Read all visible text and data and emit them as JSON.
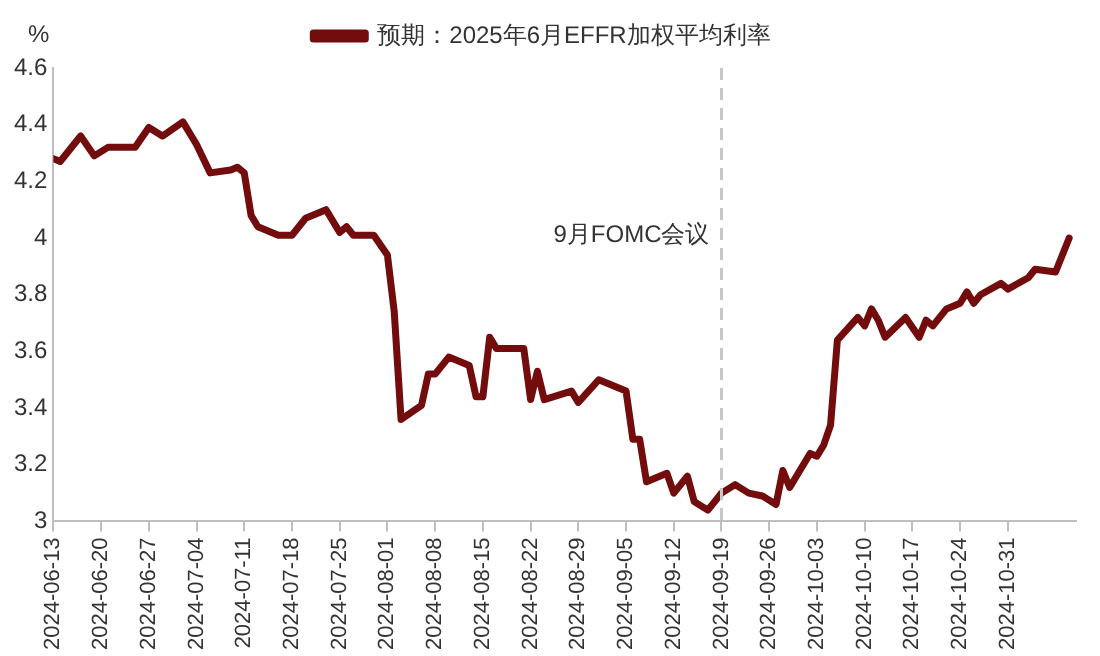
{
  "chart_data": {
    "type": "line",
    "ylabel": "%",
    "legend": "top",
    "grid": false,
    "marker": "none",
    "line_style": "solid",
    "x": [
      "2024-06-13",
      "2024-06-14",
      "2024-06-17",
      "2024-06-19",
      "2024-06-21",
      "2024-06-25",
      "2024-06-27",
      "2024-06-29",
      "2024-07-02",
      "2024-07-04",
      "2024-07-06",
      "2024-07-09",
      "2024-07-10",
      "2024-07-11",
      "2024-07-12",
      "2024-07-13",
      "2024-07-16",
      "2024-07-18",
      "2024-07-20",
      "2024-07-23",
      "2024-07-25",
      "2024-07-26",
      "2024-07-27",
      "2024-07-30",
      "2024-08-01",
      "2024-08-02",
      "2024-08-03",
      "2024-08-06",
      "2024-08-07",
      "2024-08-08",
      "2024-08-10",
      "2024-08-13",
      "2024-08-14",
      "2024-08-15",
      "2024-08-16",
      "2024-08-17",
      "2024-08-21",
      "2024-08-22",
      "2024-08-23",
      "2024-08-24",
      "2024-08-28",
      "2024-08-29",
      "2024-09-01",
      "2024-09-05",
      "2024-09-06",
      "2024-09-07",
      "2024-09-08",
      "2024-09-11",
      "2024-09-12",
      "2024-09-14",
      "2024-09-15",
      "2024-09-17",
      "2024-09-19",
      "2024-09-21",
      "2024-09-23",
      "2024-09-25",
      "2024-09-27",
      "2024-09-28",
      "2024-09-29",
      "2024-10-02",
      "2024-10-03",
      "2024-10-04",
      "2024-10-05",
      "2024-10-06",
      "2024-10-09",
      "2024-10-10",
      "2024-10-11",
      "2024-10-12",
      "2024-10-13",
      "2024-10-16",
      "2024-10-18",
      "2024-10-19",
      "2024-10-20",
      "2024-10-22",
      "2024-10-24",
      "2024-10-25",
      "2024-10-26",
      "2024-10-27",
      "2024-10-30",
      "2024-10-31",
      "2024-11-03",
      "2024-11-04",
      "2024-11-07",
      "2024-11-08",
      "2024-11-09"
    ],
    "series": [
      {
        "name": "预期：2025年6月EFFR加权平均利率",
        "color": "#730c0c",
        "values": [
          4.28,
          4.27,
          4.36,
          4.29,
          4.32,
          4.32,
          4.39,
          4.36,
          4.41,
          4.33,
          4.23,
          4.24,
          4.25,
          4.23,
          4.08,
          4.04,
          4.01,
          4.01,
          4.07,
          4.1,
          4.02,
          4.04,
          4.01,
          4.01,
          3.94,
          3.74,
          3.36,
          3.41,
          3.52,
          3.52,
          3.58,
          3.55,
          3.44,
          3.44,
          3.65,
          3.61,
          3.61,
          3.43,
          3.53,
          3.43,
          3.46,
          3.42,
          3.5,
          3.46,
          3.29,
          3.29,
          3.14,
          3.17,
          3.1,
          3.16,
          3.07,
          3.04,
          3.1,
          3.13,
          3.1,
          3.09,
          3.06,
          3.18,
          3.12,
          3.24,
          3.23,
          3.27,
          3.34,
          3.64,
          3.72,
          3.69,
          3.75,
          3.71,
          3.65,
          3.72,
          3.65,
          3.71,
          3.69,
          3.75,
          3.77,
          3.81,
          3.77,
          3.8,
          3.84,
          3.82,
          3.86,
          3.89,
          3.88,
          3.94,
          4.0
        ]
      }
    ],
    "xlim": [
      "2024-06-13",
      "2024-11-10"
    ],
    "xticks": [
      "2024-06-13",
      "2024-06-20",
      "2024-06-27",
      "2024-07-04",
      "2024-07-11",
      "2024-07-18",
      "2024-07-25",
      "2024-08-01",
      "2024-08-08",
      "2024-08-15",
      "2024-08-22",
      "2024-08-29",
      "2024-09-05",
      "2024-09-12",
      "2024-09-19",
      "2024-09-26",
      "2024-10-03",
      "2024-10-10",
      "2024-10-17",
      "2024-10-24",
      "2024-10-31"
    ],
    "ylim": [
      3,
      4.6
    ],
    "yticks": [
      3,
      3.2,
      3.4,
      3.6,
      3.8,
      4,
      4.2,
      4.4,
      4.6
    ],
    "ref_lines": [
      {
        "axis": "x",
        "value": "2024-09-19",
        "label": "9月FOMC会议",
        "color": "#c8c8c8",
        "line_style": "dashed"
      }
    ]
  }
}
